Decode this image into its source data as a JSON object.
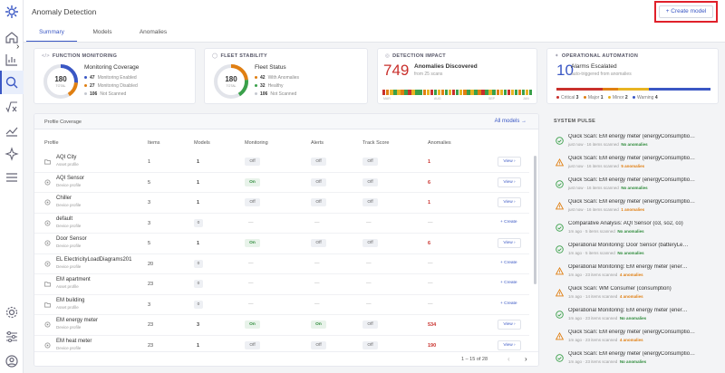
{
  "header": {
    "title": "Anomaly Detection",
    "tabs": [
      {
        "label": "Summary"
      },
      {
        "label": "Models"
      },
      {
        "label": "Anomalies"
      }
    ],
    "create_button": "+ Create model"
  },
  "cards": {
    "function_monitoring": {
      "title": "FUNCTION MONITORING",
      "donut_value": "180",
      "donut_sub": "TOTAL",
      "heading": "Monitoring Coverage",
      "rows": [
        {
          "num": "47",
          "label": "Monitoring Enabled",
          "color": "#3a57c4"
        },
        {
          "num": "27",
          "label": "Monitoring Disabled",
          "color": "#e07f12"
        },
        {
          "num": "106",
          "label": "Not Scanned",
          "color": "#c5c8d0"
        }
      ]
    },
    "fleet_stability": {
      "title": "FLEET STABILITY",
      "donut_value": "180",
      "donut_sub": "TOTAL",
      "heading": "Fleet Status",
      "rows": [
        {
          "num": "42",
          "label": "With Anomalies",
          "color": "#e07f12"
        },
        {
          "num": "32",
          "label": "Healthy",
          "color": "#3aa04a"
        },
        {
          "num": "106",
          "label": "Not Scanned",
          "color": "#c5c8d0"
        }
      ]
    },
    "detection_impact": {
      "title": "DETECTION IMPACT",
      "big_number": "749",
      "heading": "Anomalies Discovered",
      "sub": "from 25 scans",
      "bar_labels": [
        "MAR",
        "AUG",
        "SEP",
        "JAN"
      ]
    },
    "operational_automation": {
      "title": "OPERATIONAL AUTOMATION",
      "big_number": "10",
      "heading": "Alarms Escalated",
      "sub": "auto-triggered from anomalies",
      "severities": [
        {
          "label": "Critical",
          "num": "3",
          "color": "#c9302c"
        },
        {
          "label": "Major",
          "num": "1",
          "color": "#e07f12"
        },
        {
          "label": "Minor",
          "num": "2",
          "color": "#e8b422"
        },
        {
          "label": "Warning",
          "num": "4",
          "color": "#3a57c4"
        }
      ]
    }
  },
  "coverage": {
    "title": "Profile Coverage",
    "all_models": "All models →",
    "columns": [
      "Profile",
      "Items",
      "Models",
      "Monitoring",
      "Alerts",
      "Track Score",
      "Anomalies"
    ],
    "rows": [
      {
        "name": "AQI City",
        "type": "Asset profile",
        "items": "1",
        "models": "1",
        "monitoring": "Off",
        "alerts": "Off",
        "track": "Off",
        "anomalies": "1",
        "action": "View ›"
      },
      {
        "name": "AQI Sensor",
        "type": "Device profile",
        "items": "5",
        "models": "1",
        "monitoring": "On",
        "alerts": "Off",
        "track": "Off",
        "anomalies": "6",
        "action": "View ›"
      },
      {
        "name": "Chiller",
        "type": "Device profile",
        "items": "3",
        "models": "1",
        "monitoring": "Off",
        "alerts": "Off",
        "track": "Off",
        "anomalies": "1",
        "action": "View ›"
      },
      {
        "name": "default",
        "type": "Device profile",
        "items": "3",
        "models": "0",
        "monitoring": "—",
        "alerts": "—",
        "track": "—",
        "anomalies": "—",
        "action": "+ Create"
      },
      {
        "name": "Door Sensor",
        "type": "Device profile",
        "items": "5",
        "models": "1",
        "monitoring": "On",
        "alerts": "Off",
        "track": "Off",
        "anomalies": "6",
        "action": "View ›"
      },
      {
        "name": "EL ElectricityLoadDiagrams201",
        "type": "Device profile",
        "items": "20",
        "models": "0",
        "monitoring": "—",
        "alerts": "—",
        "track": "—",
        "anomalies": "—",
        "action": "+ Create"
      },
      {
        "name": "EM apartment",
        "type": "Asset profile",
        "items": "23",
        "models": "0",
        "monitoring": "—",
        "alerts": "—",
        "track": "—",
        "anomalies": "—",
        "action": "+ Create"
      },
      {
        "name": "EM building",
        "type": "Asset profile",
        "items": "3",
        "models": "0",
        "monitoring": "—",
        "alerts": "—",
        "track": "—",
        "anomalies": "—",
        "action": "+ Create"
      },
      {
        "name": "EM energy meter",
        "type": "Device profile",
        "items": "23",
        "models": "3",
        "monitoring": "On",
        "alerts": "On",
        "track": "Off",
        "anomalies": "534",
        "action": "View ›"
      },
      {
        "name": "EM heat meter",
        "type": "Device profile",
        "items": "23",
        "models": "1",
        "monitoring": "Off",
        "alerts": "Off",
        "track": "Off",
        "anomalies": "190",
        "action": "View ›"
      }
    ],
    "pager": "1 – 15 of 28"
  },
  "pulse": {
    "title": "SYSTEM PULSE",
    "items": [
      {
        "status": "ok",
        "title": "Quick Scan: EM energy meter (energyConsumptio…",
        "time": "just now",
        "scanned": "16 items scanned",
        "result": "No anomalies"
      },
      {
        "status": "warn",
        "title": "Quick Scan: EM energy meter (energyConsumptio…",
        "time": "just now",
        "scanned": "16 items scanned",
        "result": "5 anomalies"
      },
      {
        "status": "ok",
        "title": "Quick Scan: EM energy meter (energyConsumptio…",
        "time": "just now",
        "scanned": "16 items scanned",
        "result": "No anomalies"
      },
      {
        "status": "warn",
        "title": "Quick Scan: EM energy meter (energyConsumptio…",
        "time": "just now",
        "scanned": "16 items scanned",
        "result": "1 anomalies"
      },
      {
        "status": "ok",
        "title": "Comparative Analysis: AQI Sensor (o3, so2, co)",
        "time": "1m ago",
        "scanned": "5 items scanned",
        "result": "No anomalies"
      },
      {
        "status": "ok",
        "title": "Operational Monitoring: Door Sensor (batteryLe…",
        "time": "1m ago",
        "scanned": "5 items scanned",
        "result": "No anomalies"
      },
      {
        "status": "warn",
        "title": "Operational Monitoring: EM energy meter (ener…",
        "time": "1m ago",
        "scanned": "23 items scanned",
        "result": "4 anomalies"
      },
      {
        "status": "warn",
        "title": "Quick Scan: WM Consumer (consumption)",
        "time": "1m ago",
        "scanned": "14 items scanned",
        "result": "4 anomalies"
      },
      {
        "status": "ok",
        "title": "Operational Monitoring: EM energy meter (ener…",
        "time": "1m ago",
        "scanned": "23 items scanned",
        "result": "No anomalies"
      },
      {
        "status": "warn",
        "title": "Quick Scan: EM energy meter (energyConsumptio…",
        "time": "1m ago",
        "scanned": "23 items scanned",
        "result": "4 anomalies"
      },
      {
        "status": "ok",
        "title": "Quick Scan: EM energy meter (energyConsumptio…",
        "time": "1m ago",
        "scanned": "23 items scanned",
        "result": "No anomalies"
      }
    ]
  },
  "sidebar": {
    "items": [
      {
        "icon": "logo-icon"
      },
      {
        "icon": "home-icon"
      },
      {
        "icon": "chart-icon"
      },
      {
        "icon": "search-icon"
      },
      {
        "icon": "formula-icon"
      },
      {
        "icon": "trend-icon"
      },
      {
        "icon": "sparkle-icon"
      },
      {
        "icon": "menu-icon"
      },
      {
        "icon": "settings-icon"
      },
      {
        "icon": "sliders-icon"
      },
      {
        "icon": "account-icon"
      }
    ]
  }
}
